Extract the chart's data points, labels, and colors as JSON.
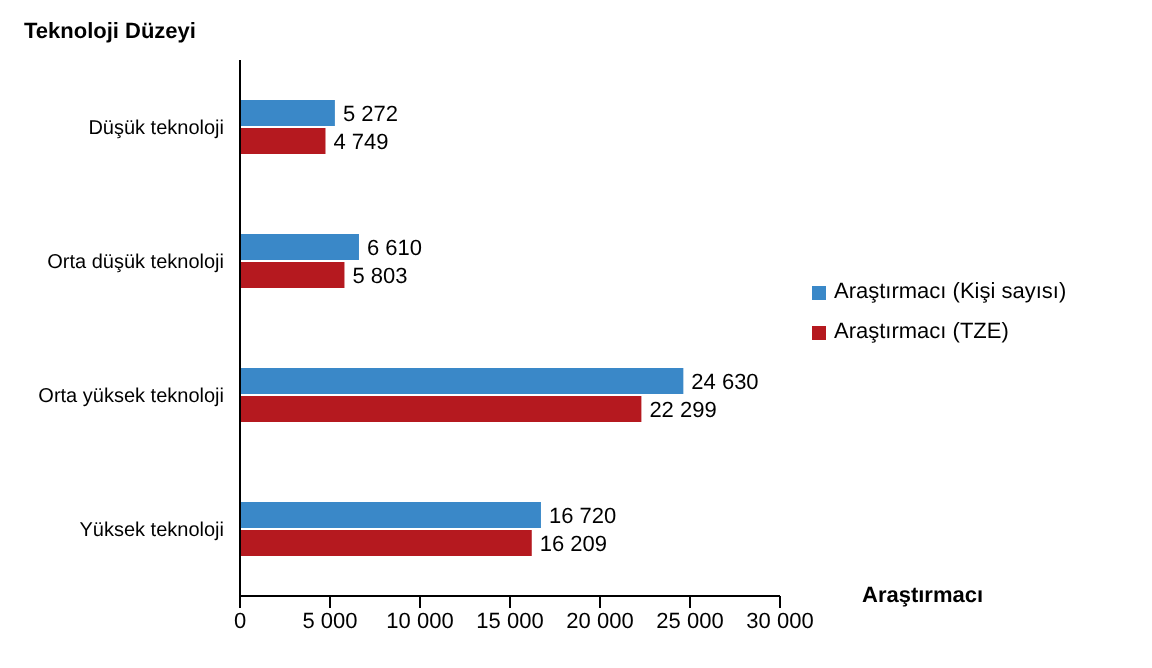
{
  "chart_data": {
    "type": "bar",
    "orientation": "horizontal",
    "ylabel": "Teknoloji Düzeyi",
    "xlabel": "Araştırmacı",
    "categories": [
      "Düşük teknoloji",
      "Orta düşük teknoloji",
      "Orta yüksek teknoloji",
      "Yüksek teknoloji"
    ],
    "series": [
      {
        "name": "Araştırmacı (Kişi sayısı)",
        "color": "#3a88c8",
        "values": [
          5272,
          6610,
          24630,
          16720
        ],
        "value_labels": [
          "5 272",
          "6 610",
          "24 630",
          "16 720"
        ]
      },
      {
        "name": "Araştırmacı (TZE)",
        "color": "#b5191f",
        "values": [
          4749,
          5803,
          22299,
          16209
        ],
        "value_labels": [
          "4 749",
          "5 803",
          "22 299",
          "16 209"
        ]
      }
    ],
    "xlim": [
      0,
      30000
    ],
    "xticks": [
      {
        "value": 0,
        "label": "0"
      },
      {
        "value": 5000,
        "label": "5 000"
      },
      {
        "value": 10000,
        "label": "10 000"
      },
      {
        "value": 15000,
        "label": "15 000"
      },
      {
        "value": 20000,
        "label": "20 000"
      },
      {
        "value": 25000,
        "label": "25 000"
      },
      {
        "value": 30000,
        "label": "30 000"
      }
    ],
    "legend": "right",
    "grid": false
  }
}
